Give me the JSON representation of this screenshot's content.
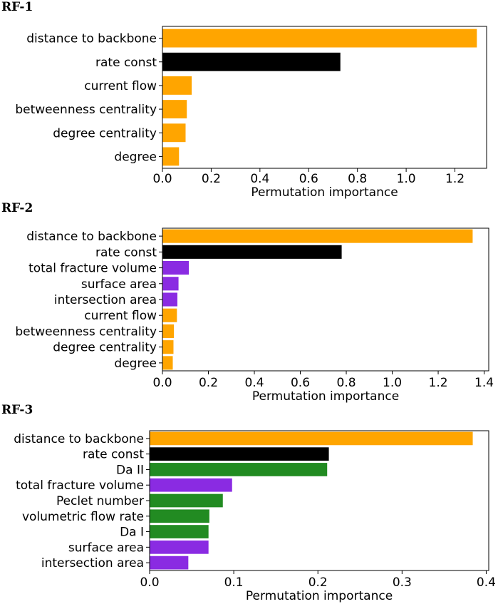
{
  "colors": {
    "orange": "#FFA500",
    "black": "#000000",
    "purple": "#8A2BE2",
    "green": "#228B22"
  },
  "chart_data": [
    {
      "type": "bar",
      "orientation": "horizontal",
      "title": "RF-1",
      "xlabel": "Permutation importance",
      "xlim": [
        0,
        1.33
      ],
      "xticks": [
        0.0,
        0.2,
        0.4,
        0.6,
        0.8,
        1.0,
        1.2
      ],
      "xtick_labels": [
        "0.0",
        "0.2",
        "0.4",
        "0.6",
        "0.8",
        "1.0",
        "1.2"
      ],
      "categories": [
        "distance to backbone",
        "rate const",
        "current flow",
        "betweenness centrality",
        "degree centrality",
        "degree"
      ],
      "values": [
        1.29,
        0.73,
        0.12,
        0.1,
        0.095,
        0.068
      ],
      "bar_colors": [
        "orange",
        "black",
        "orange",
        "orange",
        "orange",
        "orange"
      ],
      "grid": false
    },
    {
      "type": "bar",
      "orientation": "horizontal",
      "title": "RF-2",
      "xlabel": "Permutation importance",
      "xlim": [
        0,
        1.42
      ],
      "xticks": [
        0.0,
        0.2,
        0.4,
        0.6,
        0.8,
        1.0,
        1.2,
        1.4
      ],
      "xtick_labels": [
        "0.0",
        "0.2",
        "0.4",
        "0.6",
        "0.8",
        "1.0",
        "1.2",
        "1.4"
      ],
      "categories": [
        "distance to backbone",
        "rate const",
        "total fracture volume",
        "surface area",
        "intersection area",
        "current flow",
        "betweenness centrality",
        "degree centrality",
        "degree"
      ],
      "values": [
        1.35,
        0.78,
        0.115,
        0.07,
        0.065,
        0.063,
        0.05,
        0.048,
        0.045
      ],
      "bar_colors": [
        "orange",
        "black",
        "purple",
        "purple",
        "purple",
        "orange",
        "orange",
        "orange",
        "orange"
      ],
      "grid": false
    },
    {
      "type": "bar",
      "orientation": "horizontal",
      "title": "RF-3",
      "xlabel": "Permutation importance",
      "xlim": [
        0,
        0.403
      ],
      "xticks": [
        0.0,
        0.1,
        0.2,
        0.3,
        0.4
      ],
      "xtick_labels": [
        "0.0",
        "0.1",
        "0.2",
        "0.3",
        "0.4"
      ],
      "categories": [
        "distance to backbone",
        "rate const",
        "Da II",
        "total fracture volume",
        "Peclet number",
        "volumetric flow rate",
        "Da I",
        "surface area",
        "intersection area"
      ],
      "values": [
        0.384,
        0.213,
        0.211,
        0.098,
        0.087,
        0.071,
        0.07,
        0.07,
        0.046
      ],
      "bar_colors": [
        "orange",
        "black",
        "green",
        "purple",
        "green",
        "green",
        "green",
        "purple",
        "purple"
      ],
      "grid": false
    }
  ]
}
